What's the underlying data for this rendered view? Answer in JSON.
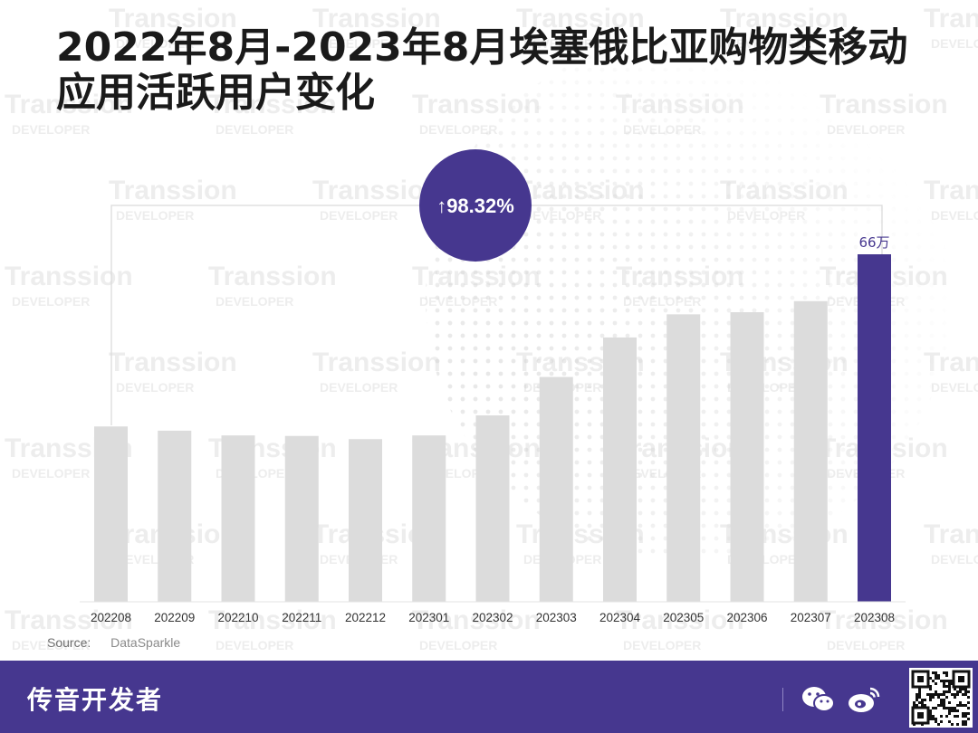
{
  "title": "2022年8月-2023年8月埃塞俄比亚购物类移动应用活跃用户变化",
  "badge": "↑98.32%",
  "source": {
    "label": "Source:",
    "value": "DataSparkle"
  },
  "footer": {
    "brand": "传音开发者",
    "icons": [
      "wechat-icon",
      "weibo-icon",
      "qr-code"
    ]
  },
  "watermark": {
    "line1": "Transsion",
    "line2": "DEVELOPER"
  },
  "colors": {
    "bar": "#dcdcdc",
    "highlight": "#46378f",
    "footer": "#46378f",
    "text": "#1a1a1a"
  },
  "chart_data": {
    "type": "bar",
    "categories": [
      "202208",
      "202209",
      "202210",
      "202211",
      "202212",
      "202301",
      "202302",
      "202303",
      "202304",
      "202305",
      "202306",
      "202307",
      "202308"
    ],
    "values": [
      33.3,
      32.5,
      31.6,
      31.5,
      30.9,
      31.6,
      35.4,
      42.7,
      50.2,
      54.6,
      55.0,
      57.1,
      66
    ],
    "data_labels": {
      "202308": "66万"
    },
    "highlight_category": "202308",
    "ylim": [
      0,
      70
    ],
    "xlabel": "",
    "ylabel": "",
    "grid": false
  }
}
